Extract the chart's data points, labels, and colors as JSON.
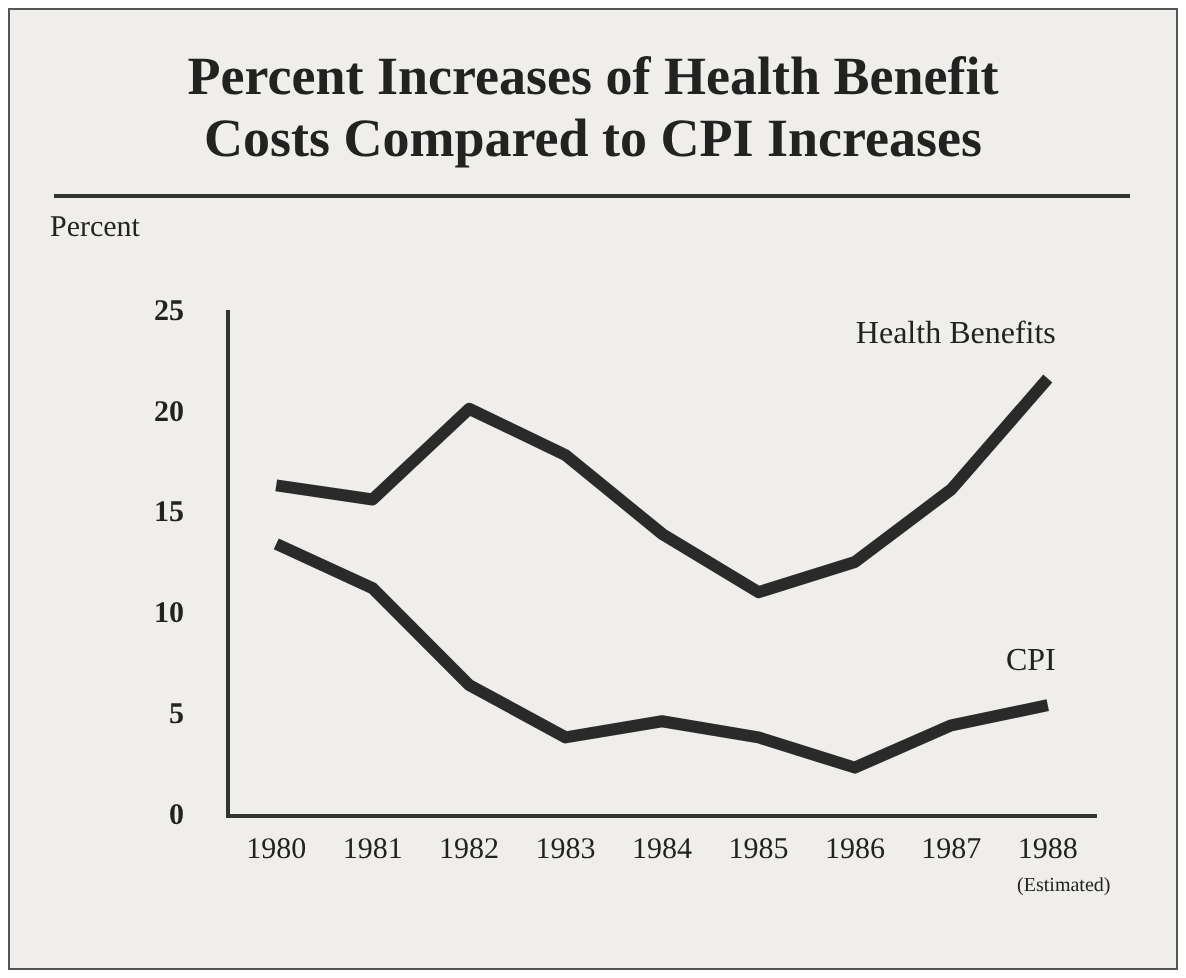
{
  "chart_data": {
    "type": "line",
    "title": "Percent Increases of Health Benefit Costs Compared to CPI Increases",
    "ylabel": "Percent",
    "categories": [
      "1980",
      "1981",
      "1982",
      "1983",
      "1984",
      "1985",
      "1986",
      "1987",
      "1988"
    ],
    "series": [
      {
        "name": "Health Benefits",
        "color": "#2a2a2a",
        "values": [
          16.4,
          15.7,
          20.2,
          17.9,
          14.0,
          11.1,
          12.6,
          16.2,
          21.7
        ]
      },
      {
        "name": "CPI",
        "color": "#2a2a2a",
        "values": [
          13.5,
          11.3,
          6.5,
          3.9,
          4.7,
          3.9,
          2.4,
          4.5,
          5.5
        ]
      }
    ],
    "ylim": [
      0,
      25
    ],
    "yticks": [
      0,
      5,
      10,
      15,
      20,
      25
    ],
    "grid": false,
    "legend": false,
    "marker": "none",
    "line_style": "solid",
    "annotations": [
      "(Estimated)"
    ]
  }
}
